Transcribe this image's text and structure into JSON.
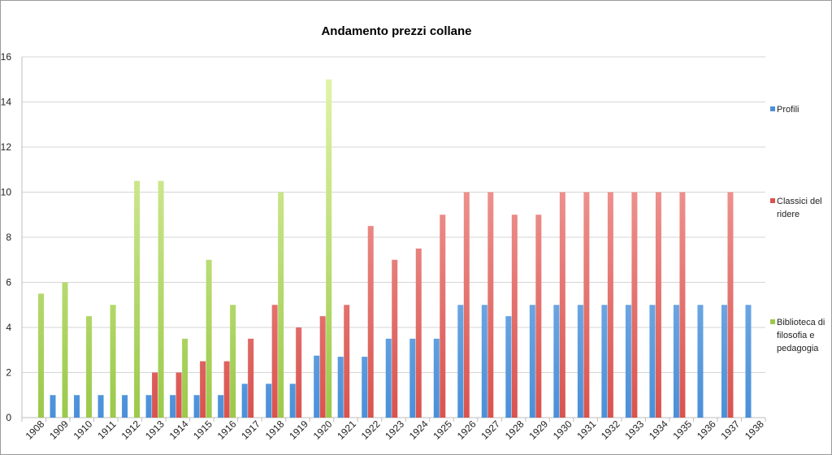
{
  "chart_data": {
    "type": "bar",
    "title": "Andamento prezzi collane",
    "xlabel": "",
    "ylabel": "",
    "ylim": [
      0,
      16
    ],
    "yticks": [
      0,
      2,
      4,
      6,
      8,
      10,
      12,
      14,
      16
    ],
    "grid": true,
    "legend_position": "right",
    "categories": [
      "1908",
      "1909",
      "1910",
      "1911",
      "1912",
      "1913",
      "1914",
      "1915",
      "1916",
      "1917",
      "1918",
      "1919",
      "1920",
      "1921",
      "1922",
      "1923",
      "1924",
      "1925",
      "1926",
      "1927",
      "1928",
      "1929",
      "1930",
      "1931",
      "1932",
      "1933",
      "1934",
      "1935",
      "1936",
      "1937",
      "1938"
    ],
    "series": [
      {
        "name": "Profili",
        "color": "#4a90d9",
        "color_light": "#b0d2f7",
        "values": [
          null,
          1,
          1,
          1,
          1,
          1,
          1,
          1,
          1,
          1.5,
          1.5,
          1.5,
          2.75,
          2.7,
          2.7,
          3.5,
          3.5,
          3.5,
          5,
          5,
          4.5,
          5,
          5,
          5,
          5,
          5,
          5,
          5,
          5,
          5,
          5
        ]
      },
      {
        "name": "Classici del ridere",
        "color": "#d9534f",
        "color_light": "#f9b5b2",
        "values": [
          null,
          null,
          null,
          null,
          null,
          2,
          2,
          2.5,
          2.5,
          3.5,
          5,
          4,
          4.5,
          5,
          8.5,
          7,
          7.5,
          9,
          10,
          10,
          9,
          9,
          10,
          10,
          10,
          10,
          10,
          10,
          null,
          10,
          null
        ]
      },
      {
        "name": "Biblioteca di filosofia e pedagogia",
        "color": "#9bc94a",
        "color_light": "#e4f6ad",
        "values": [
          5.5,
          6,
          4.5,
          5,
          10.5,
          10.5,
          3.5,
          7,
          5,
          null,
          10,
          null,
          15,
          null,
          null,
          null,
          null,
          null,
          null,
          null,
          null,
          null,
          null,
          null,
          null,
          null,
          null,
          null,
          null,
          null,
          null
        ]
      }
    ]
  },
  "legend_lines": [
    [
      "Profili"
    ],
    [
      "Classici del",
      "ridere"
    ],
    [
      "Biblioteca di",
      "filosofia e",
      "pedagogia"
    ]
  ]
}
